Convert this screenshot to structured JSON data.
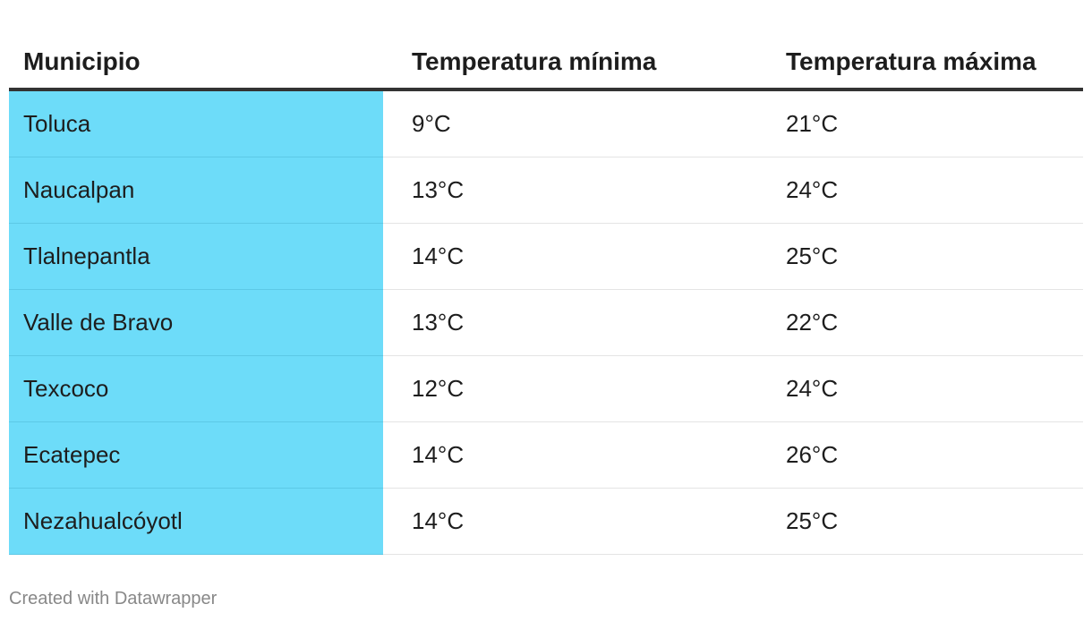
{
  "table": {
    "headers": [
      "Municipio",
      "Temperatura mínima",
      "Temperatura máxima"
    ],
    "rows": [
      [
        "Toluca",
        "9°C",
        "21°C"
      ],
      [
        "Naucalpan",
        "13°C",
        "24°C"
      ],
      [
        "Tlalnepantla",
        "14°C",
        "25°C"
      ],
      [
        "Valle de Bravo",
        "13°C",
        "22°C"
      ],
      [
        "Texcoco",
        "12°C",
        "24°C"
      ],
      [
        "Ecatepec",
        "14°C",
        "26°C"
      ],
      [
        "Nezahualcóyotl",
        "14°C",
        "25°C"
      ]
    ]
  },
  "footer": "Created with Datawrapper"
}
